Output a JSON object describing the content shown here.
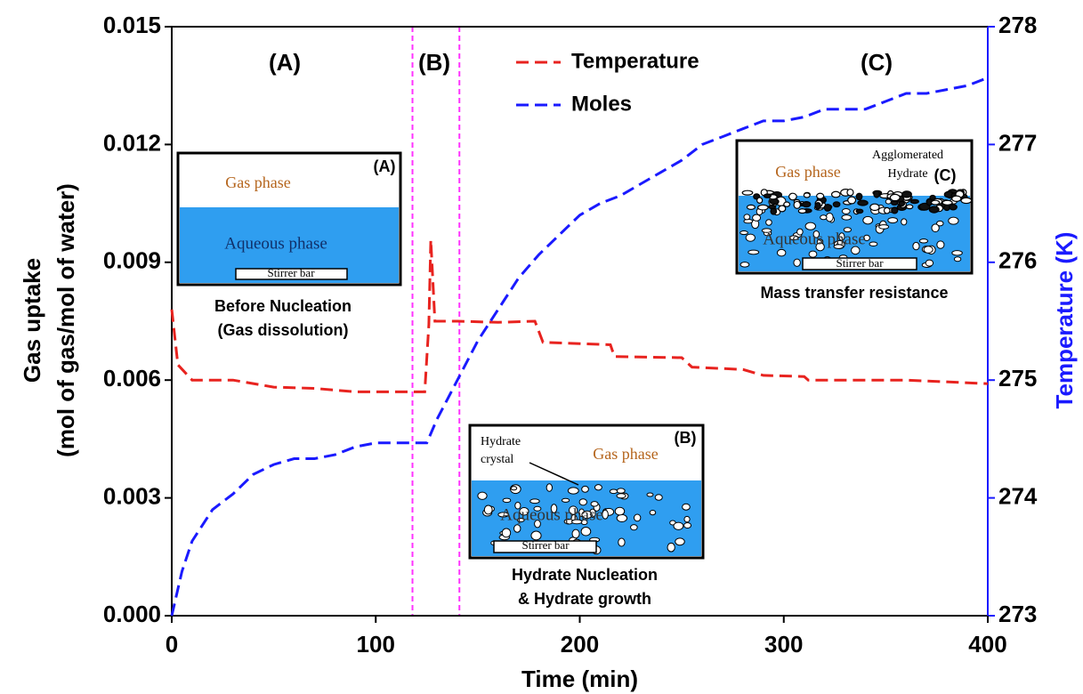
{
  "chart_data": {
    "type": "line",
    "xlabel": "Time (min)",
    "ylabel": [
      "Gas uptake",
      "(mol of gas/mol of water)"
    ],
    "y2label": "Temperature (K)",
    "xlim": [
      0,
      400
    ],
    "xticks": [
      0,
      100,
      200,
      300,
      400
    ],
    "ylim": [
      0,
      0.015
    ],
    "yticks": [
      {
        "value": 0,
        "label": "0.000"
      },
      0.003,
      0.006,
      0.009,
      0.012,
      0.015
    ],
    "y2lim": [
      273,
      278
    ],
    "y2ticks": [
      273,
      274,
      275,
      276,
      277,
      278
    ],
    "y2color": "#1a1aff",
    "legend": "top",
    "series": [
      {
        "name": "Temperature",
        "color": "#e8231f",
        "axis": "y2",
        "x": [
          0,
          3,
          10,
          30,
          50,
          70,
          90,
          110,
          124,
          126,
          127,
          129,
          140,
          160,
          178,
          182,
          200,
          215,
          217,
          250,
          255,
          280,
          290,
          310,
          312,
          360,
          400
        ],
        "values": [
          275.6,
          275.13,
          275.0,
          275.0,
          274.94,
          274.93,
          274.9,
          274.9,
          274.9,
          275.47,
          276.19,
          275.5,
          275.5,
          275.49,
          275.5,
          275.32,
          275.31,
          275.3,
          275.2,
          275.19,
          275.11,
          275.09,
          275.04,
          275.03,
          275.0,
          275.0,
          274.97
        ]
      },
      {
        "name": "Moles",
        "color": "#1a1aff",
        "x": [
          0,
          5,
          10,
          20,
          30,
          40,
          50,
          60,
          70,
          80,
          90,
          100,
          110,
          120,
          125,
          130,
          135,
          140,
          150,
          160,
          170,
          180,
          190,
          200,
          210,
          220,
          230,
          240,
          250,
          260,
          270,
          280,
          290,
          300,
          310,
          320,
          330,
          340,
          350,
          360,
          370,
          380,
          390,
          400
        ],
        "values": [
          0,
          0.00113,
          0.0019,
          0.0027,
          0.0031,
          0.0036,
          0.00385,
          0.004,
          0.004,
          0.0041,
          0.0043,
          0.0044,
          0.0044,
          0.0044,
          0.0044,
          0.005,
          0.0055,
          0.006,
          0.007,
          0.0078,
          0.0086,
          0.0092,
          0.0097,
          0.0102,
          0.0105,
          0.0107,
          0.011,
          0.0113,
          0.0116,
          0.012,
          0.0122,
          0.0124,
          0.0126,
          0.0126,
          0.0127,
          0.0129,
          0.0129,
          0.0129,
          0.0131,
          0.0133,
          0.0133,
          0.0134,
          0.0135,
          0.0137
        ]
      }
    ],
    "phase_lines": {
      "x": [
        118,
        141
      ],
      "color": "#ff33ff"
    },
    "region_labels": [
      "(A)",
      "(B)",
      "(C)"
    ],
    "insets": [
      {
        "tag": "(A)",
        "gas": "Gas phase",
        "aqueous": "Aqueous phase",
        "stirrer": "Stirrer bar",
        "extra": [],
        "caption": [
          "Before Nucleation",
          "(Gas dissolution)"
        ]
      },
      {
        "tag": "(B)",
        "gas": "Gas phase",
        "aqueous": "Aqueous phase",
        "stirrer": "Stirrer bar",
        "extra": [
          "Hydrate",
          "crystal"
        ],
        "caption": [
          "Hydrate Nucleation",
          "& Hydrate growth"
        ]
      },
      {
        "tag": "(C)",
        "gas": "Gas phase",
        "aqueous": "Aqueous phase",
        "stirrer": "Stirrer bar",
        "extra": [
          "Agglomerated",
          "Hydrate"
        ],
        "caption": [
          "Mass transfer resistance"
        ]
      }
    ]
  }
}
